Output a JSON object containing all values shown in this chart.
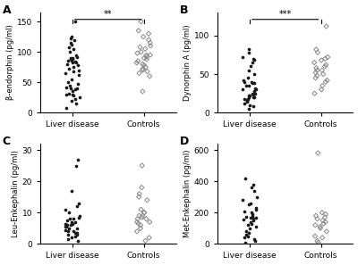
{
  "panel_A": {
    "label": "A",
    "ylabel": "β-endorphin (pg/ml)",
    "ylim": [
      0,
      165
    ],
    "yticks": [
      0,
      50,
      100,
      150
    ],
    "sig": "**",
    "liver_disease": [
      8,
      15,
      20,
      22,
      25,
      28,
      30,
      30,
      32,
      35,
      38,
      40,
      40,
      42,
      45,
      48,
      50,
      55,
      62,
      65,
      68,
      70,
      72,
      75,
      78,
      80,
      82,
      82,
      84,
      85,
      85,
      88,
      88,
      90,
      90,
      92,
      95,
      100,
      105,
      108,
      112,
      115,
      120,
      122,
      125,
      150
    ],
    "controls": [
      35,
      60,
      65,
      68,
      70,
      72,
      75,
      78,
      80,
      82,
      85,
      88,
      90,
      92,
      95,
      95,
      98,
      100,
      105,
      108,
      110,
      115,
      120,
      125,
      130,
      135,
      150
    ]
  },
  "panel_B": {
    "label": "B",
    "ylabel": "Dynorphin A (pg/ml)",
    "ylim": [
      0,
      130
    ],
    "yticks": [
      0,
      50,
      100
    ],
    "sig": "***",
    "liver_disease": [
      5,
      8,
      10,
      12,
      14,
      15,
      16,
      18,
      18,
      20,
      20,
      20,
      22,
      22,
      24,
      25,
      25,
      28,
      30,
      30,
      32,
      35,
      35,
      38,
      38,
      40,
      40,
      42,
      45,
      50,
      55,
      60,
      65,
      68,
      70,
      72,
      78,
      82
    ],
    "controls": [
      25,
      30,
      35,
      40,
      42,
      45,
      48,
      50,
      52,
      55,
      55,
      58,
      60,
      62,
      65,
      68,
      70,
      72,
      78,
      82,
      112
    ]
  },
  "panel_C": {
    "label": "C",
    "ylabel": "Leu-Enkephalin (pg/ml)",
    "ylim": [
      0,
      32
    ],
    "yticks": [
      0,
      10,
      20,
      30
    ],
    "sig": null,
    "liver_disease": [
      1,
      1.5,
      2,
      2.5,
      3,
      3,
      3.5,
      3.5,
      4,
      4,
      4.5,
      5,
      5,
      5.5,
      5.5,
      6,
      6,
      6,
      6.5,
      6.5,
      7,
      7,
      7.5,
      8,
      8,
      8.5,
      9,
      10,
      11,
      12,
      13,
      17,
      25,
      27
    ],
    "controls": [
      1,
      2,
      4,
      5,
      6,
      6.5,
      7,
      7,
      8,
      8,
      8.5,
      9,
      9,
      10,
      10,
      11,
      14,
      15,
      16,
      18,
      25
    ]
  },
  "panel_D": {
    "label": "D",
    "ylabel": "Met-Enkephalin (pg/ml)",
    "ylim": [
      0,
      640
    ],
    "yticks": [
      0,
      200,
      400,
      600
    ],
    "sig": null,
    "liver_disease": [
      10,
      20,
      30,
      40,
      50,
      60,
      70,
      80,
      100,
      110,
      120,
      130,
      140,
      150,
      155,
      160,
      165,
      170,
      175,
      180,
      190,
      200,
      210,
      220,
      230,
      250,
      260,
      280,
      300,
      340,
      360,
      380,
      420
    ],
    "controls": [
      10,
      20,
      40,
      50,
      80,
      100,
      110,
      120,
      130,
      140,
      150,
      160,
      170,
      180,
      190,
      200,
      580
    ]
  },
  "liver_color": "#1a1a1a",
  "control_color": "#888888",
  "marker_size_circle": 7,
  "marker_size_diamond": 7,
  "xlabel_liver": "Liver disease",
  "xlabel_controls": "Controls",
  "background_color": "#ffffff"
}
